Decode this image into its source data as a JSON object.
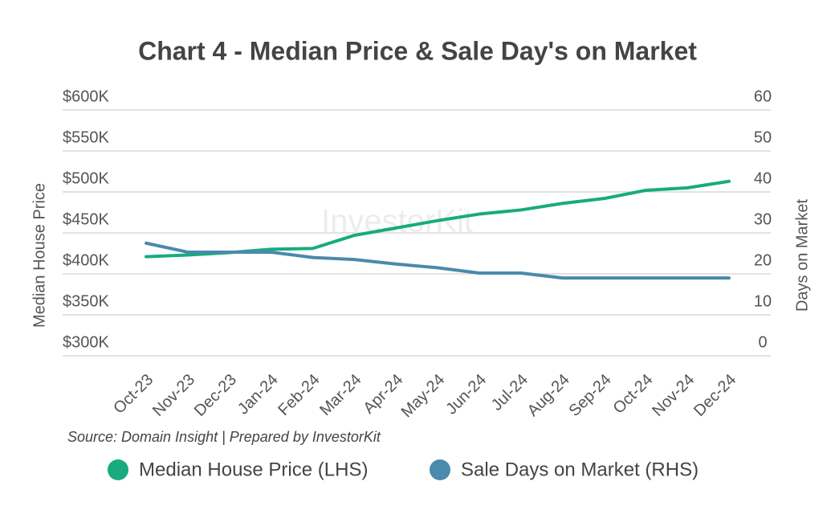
{
  "chart_data": {
    "type": "line",
    "title": "Chart 4 - Median Price & Sale Day's on Market",
    "y_label": "Median House Price",
    "y2_label": "Days on Market",
    "source": "Source: Domain Insight | Prepared by InvestorKit",
    "watermark": "InvestorKit",
    "categories": [
      "Oct-23",
      "Nov-23",
      "Dec-23",
      "Jan-24",
      "Feb-24",
      "Mar-24",
      "Apr-24",
      "May-24",
      "Jun-24",
      "Jul-24",
      "Aug-24",
      "Sep-24",
      "Oct-24",
      "Nov-24",
      "Dec-24"
    ],
    "series": [
      {
        "name": "Median House Price (LHS)",
        "color": "#17ab7f",
        "values": [
          421000,
          423000,
          426000,
          430000,
          431000,
          447000,
          456000,
          465000,
          473000,
          478000,
          486000,
          492000,
          502000,
          505000,
          513000
        ]
      },
      {
        "name": "Sale Days on Market (RHS)",
        "color": "#4a8aab",
        "axis": "y2",
        "values": [
          27.5,
          25.3,
          25.3,
          25.3,
          24,
          23.5,
          22.4,
          21.5,
          20.2,
          20.2,
          19,
          19,
          19,
          19,
          19
        ]
      }
    ],
    "ylim": [
      300000,
      600000
    ],
    "yticks": [
      {
        "value": 300000,
        "label": "$300K"
      },
      {
        "value": 350000,
        "label": "$350K"
      },
      {
        "value": 400000,
        "label": "$400K"
      },
      {
        "value": 450000,
        "label": "$450K"
      },
      {
        "value": 500000,
        "label": "$500K"
      },
      {
        "value": 550000,
        "label": "$550K"
      },
      {
        "value": 600000,
        "label": "$600K"
      }
    ],
    "y2lim": [
      0,
      60
    ],
    "y2ticks": [
      0,
      10,
      20,
      30,
      40,
      50,
      60
    ],
    "grid": true,
    "legend": "bottom"
  }
}
